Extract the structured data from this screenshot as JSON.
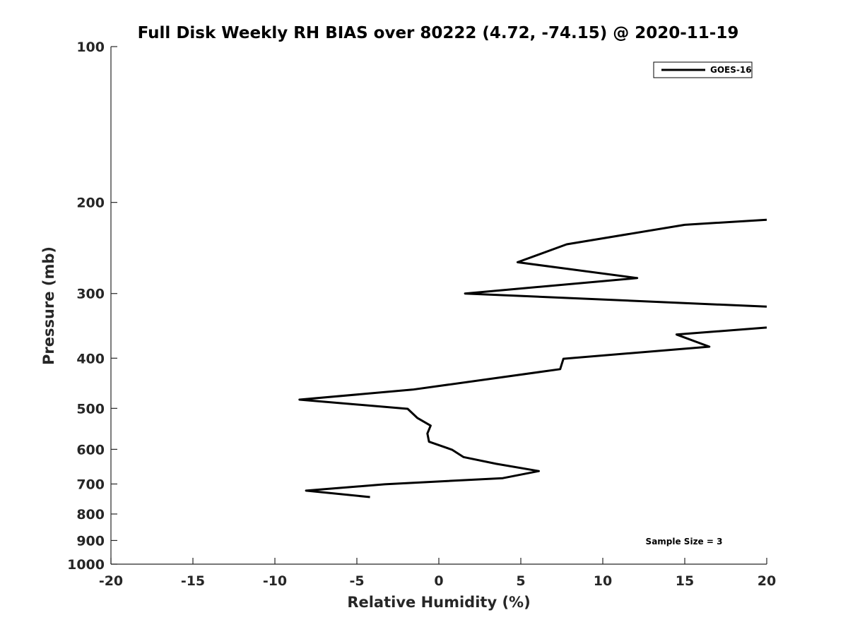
{
  "chart_data": {
    "type": "line",
    "title": "Full Disk Weekly RH BIAS over 80222 (4.72, -74.15) @ 2020-11-19",
    "xlabel": "Relative Humidity (%)",
    "ylabel": "Pressure (mb)",
    "xlim": [
      -20,
      20
    ],
    "ylim": [
      100,
      1000
    ],
    "yscale": "log",
    "y_reversed": true,
    "grid": false,
    "legend_placement": "top-right",
    "xticks": [
      "-20",
      "-15",
      "-10",
      "-5",
      "0",
      "5",
      "10",
      "15",
      "20"
    ],
    "yticks": [
      "100",
      "200",
      "300",
      "400",
      "500",
      "600",
      "700",
      "800",
      "900",
      "1000"
    ],
    "annotation": "Sample Size = 3",
    "series": [
      {
        "name": "GOES-16",
        "color": "#000000",
        "points": [
          [
            20,
            216
          ],
          [
            15.0,
            221
          ],
          [
            7.8,
            241
          ],
          [
            4.8,
            261
          ],
          [
            12.1,
            280
          ],
          [
            1.6,
            300
          ],
          [
            20,
            318
          ],
          null,
          [
            20,
            349
          ],
          [
            14.5,
            360
          ],
          [
            16.5,
            380
          ],
          [
            7.6,
            401
          ],
          [
            7.4,
            420
          ],
          [
            -1.6,
            460
          ],
          [
            -8.5,
            481
          ],
          [
            -1.9,
            501
          ],
          [
            -1.3,
            522
          ],
          [
            -0.5,
            540
          ],
          [
            -0.7,
            559
          ],
          [
            -0.6,
            580
          ],
          [
            0.8,
            601
          ],
          [
            1.5,
            621
          ],
          [
            3.5,
            640
          ],
          [
            6.1,
            661
          ],
          [
            3.9,
            682
          ],
          [
            -3.3,
            701
          ],
          [
            -8.1,
            721
          ],
          [
            -4.2,
            742
          ]
        ]
      }
    ]
  }
}
